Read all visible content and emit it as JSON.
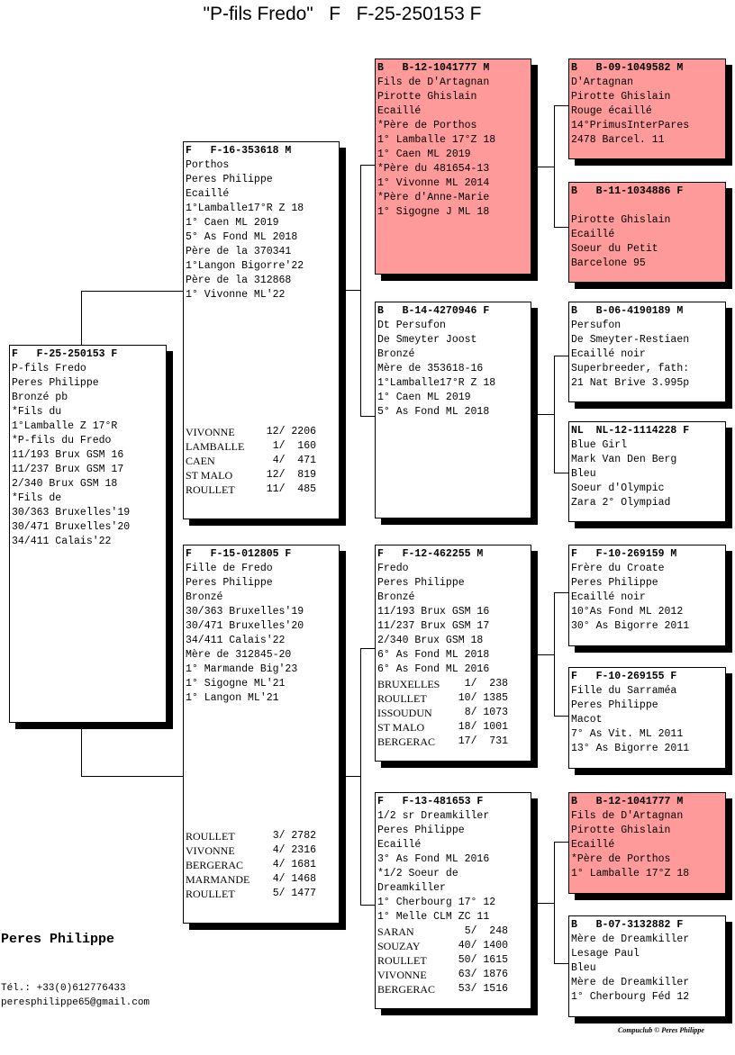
{
  "title": "\"P-fils Fredo\"   F   F-25-250153 F",
  "colors": {
    "highlight": "#ff9a9a",
    "normal": "#ffffff"
  },
  "boxes": [
    {
      "header": "F   F-25-250153 F",
      "highlight": false,
      "lines": [
        "P-fils Fredo",
        "Peres Philippe",
        "Bronzé pb",
        "*Fils du",
        "1°Lamballe Z 17°R",
        "*P-fils du Fredo",
        "11/193 Brux GSM 16",
        "11/237 Brux GSM 17",
        "2/340 Brux GSM 18",
        "*Fils de",
        "30/363 Bruxelles'19",
        "30/471 Bruxelles'20",
        "34/411 Calais'22"
      ],
      "results": []
    },
    {
      "header": "F   F-16-353618 M",
      "highlight": false,
      "lines": [
        "Porthos",
        "Peres Philippe",
        "Ecaillé",
        "1°Lamballe17°R Z 18",
        "1° Caen ML 2019",
        "5° As Fond ML 2018",
        "Père de la 370341",
        "1°Langon Bigorre'22",
        "Père de la 312868",
        "1° Vivonne ML'22"
      ],
      "results": [
        {
          "race": "VIVONNE",
          "place": "12/ 2206"
        },
        {
          "race": "LAMBALLE",
          "place": "1/  160"
        },
        {
          "race": "CAEN",
          "place": "4/  471"
        },
        {
          "race": "ST MALO",
          "place": "12/  819"
        },
        {
          "race": "ROULLET",
          "place": "11/  485"
        }
      ]
    },
    {
      "header": "F   F-15-012805 F",
      "highlight": false,
      "lines": [
        "Fille de Fredo",
        "Peres Philippe",
        "Bronzé",
        "30/363 Bruxelles'19",
        "30/471 Bruxelles'20",
        "34/411 Calais'22",
        "Mère de 312845-20",
        "1° Marmande Big'23",
        "1° Sigogne ML'21",
        "1° Langon ML'21"
      ],
      "results": [
        {
          "race": "ROULLET",
          "place": "3/ 2782"
        },
        {
          "race": "VIVONNE",
          "place": "4/ 2316"
        },
        {
          "race": "BERGERAC",
          "place": "4/ 1681"
        },
        {
          "race": "MARMANDE",
          "place": "4/ 1468"
        },
        {
          "race": "ROULLET",
          "place": "5/ 1477"
        }
      ]
    },
    {
      "header": "B   B-12-1041777 M",
      "highlight": true,
      "lines": [
        "Fils de D'Artagnan",
        "Pirotte Ghislain",
        "Ecaillé",
        "*Père de Porthos",
        "1° Lamballe 17°Z 18",
        "1° Caen ML 2019",
        "*Père du 481654-13",
        "1° Vivonne ML 2014",
        "*Père d'Anne-Marie",
        "1° Sigogne J ML 18"
      ],
      "results": []
    },
    {
      "header": "B   B-14-4270946 F",
      "highlight": false,
      "lines": [
        "Dt Persufon",
        "De Smeyter Joost",
        "Bronzé",
        "Mère de 353618-16",
        "1°Lamballe17°R Z 18",
        "1° Caen ML 2019",
        "5° As Fond ML 2018"
      ],
      "results": []
    },
    {
      "header": "F   F-12-462255 M",
      "highlight": false,
      "lines": [
        "Fredo",
        "Peres Philippe",
        "Bronzé",
        "11/193 Brux GSM 16",
        "11/237 Brux GSM 17",
        "2/340 Brux GSM 18",
        "6° As Fond ML 2018",
        "6° As Fond ML 2016"
      ],
      "results": [
        {
          "race": "BRUXELLES",
          "place": "1/  238"
        },
        {
          "race": "ROULLET",
          "place": "10/ 1385"
        },
        {
          "race": "ISSOUDUN",
          "place": "8/ 1073"
        },
        {
          "race": "ST MALO",
          "place": "18/ 1001"
        },
        {
          "race": "BERGERAC",
          "place": "17/  731"
        }
      ]
    },
    {
      "header": "F   F-13-481653 F",
      "highlight": false,
      "lines": [
        "1/2 sr Dreamkiller",
        "Peres Philippe",
        "Ecaillé",
        "3° As Fond ML 2016",
        "*1/2 Soeur de",
        "Dreamkiller",
        "1° Cherbourg 17° 12",
        "1° Melle CLM ZC 11"
      ],
      "results": [
        {
          "race": "SARAN",
          "place": "5/  248"
        },
        {
          "race": "SOUZAY",
          "place": "40/ 1400"
        },
        {
          "race": "ROULLET",
          "place": "50/ 1615"
        },
        {
          "race": "VIVONNE",
          "place": "63/ 1876"
        },
        {
          "race": "BERGERAC",
          "place": "53/ 1516"
        }
      ]
    },
    {
      "header": "B   B-09-1049582 M",
      "highlight": true,
      "lines": [
        "D'Artagnan",
        "Pirotte Ghislain",
        "Rouge écaillé",
        "14°PrimusInterPares",
        "2478 Barcel. 11"
      ],
      "results": []
    },
    {
      "header": "B   B-11-1034886 F",
      "highlight": true,
      "lines": [
        "",
        "Pirotte Ghislain",
        "Ecaillé",
        "Soeur du Petit",
        "Barcelone 95"
      ],
      "results": []
    },
    {
      "header": "B   B-06-4190189 M",
      "highlight": false,
      "lines": [
        "Persufon",
        "De Smeyter-Restiaen",
        "Ecaillé noir",
        "Superbreeder, fath:",
        "21 Nat Brive 3.995p"
      ],
      "results": []
    },
    {
      "header": "NL  NL-12-1114228 F",
      "highlight": false,
      "lines": [
        "Blue Girl",
        "Mark Van Den Berg",
        "Bleu",
        "Soeur d'Olympic",
        "Zara 2° Olympiad"
      ],
      "results": []
    },
    {
      "header": "F   F-10-269159 M",
      "highlight": false,
      "lines": [
        "Frère du Croate",
        "Peres Philippe",
        "Ecaillé noir",
        "10°As Fond ML 2012",
        "30° As Bigorre 2011"
      ],
      "results": []
    },
    {
      "header": "F   F-10-269155 F",
      "highlight": false,
      "lines": [
        "Fille du Sarraméa",
        "Peres Philippe",
        "Macot",
        "7° As Vit. ML 2011",
        "13° As Bigorre 2011"
      ],
      "results": []
    },
    {
      "header": "B   B-12-1041777 M",
      "highlight": true,
      "lines": [
        "Fils de D'Artagnan",
        "Pirotte Ghislain",
        "Ecaillé",
        "*Père de Porthos",
        "1° Lamballe 17°Z 18"
      ],
      "results": []
    },
    {
      "header": "B   B-07-3132882 F",
      "highlight": false,
      "lines": [
        "Mère de Dreamkiller",
        "Lesage Paul",
        "Bleu",
        "Mère de Dreamkiller",
        "1° Cherbourg Féd 12"
      ],
      "results": []
    }
  ],
  "breeder": {
    "name": "Peres Philippe",
    "phone": "Tél.: +33(0)612776433",
    "email": "peresphilippe65@gmail.com"
  },
  "footer": "Compuclub © Peres Philippe"
}
